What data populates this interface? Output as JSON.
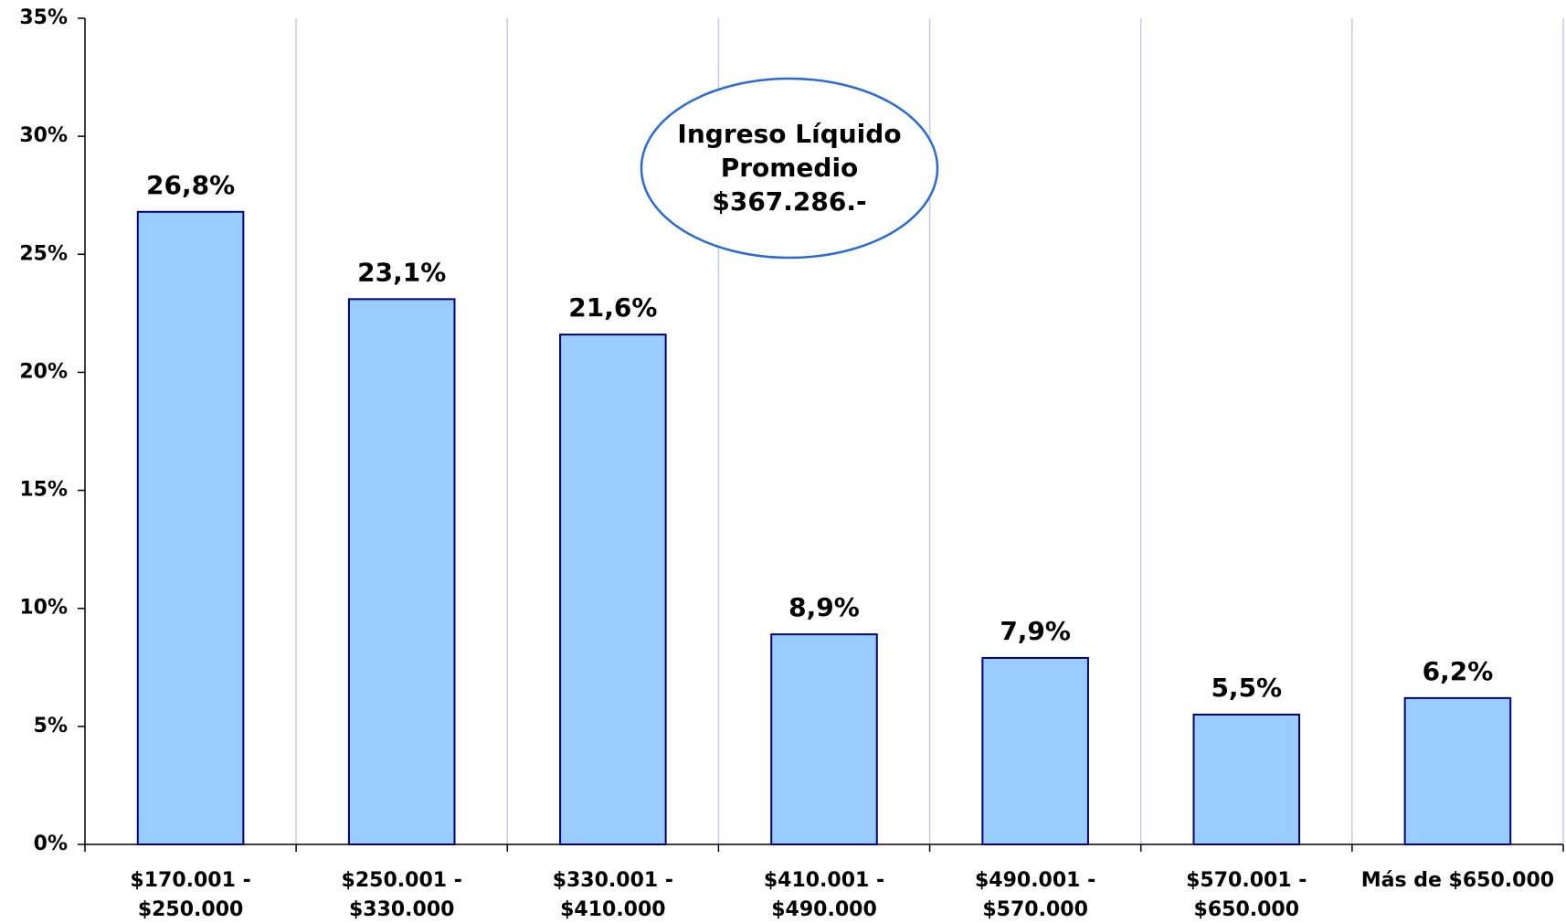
{
  "chart_data": {
    "type": "bar",
    "categories": [
      "$170.001 - $250.000",
      "$250.001 - $330.000",
      "$330.001 - $410.000",
      "$410.001 - $490.000",
      "$490.001 - $570.000",
      "$570.001 - $650.000",
      "Más de $650.000"
    ],
    "values": [
      26.8,
      23.1,
      21.6,
      8.9,
      7.9,
      5.5,
      6.2
    ],
    "value_labels": [
      "26,8%",
      "23,1%",
      "21,6%",
      "8,9%",
      "7,9%",
      "5,5%",
      "6,2%"
    ],
    "color": "#99ccff",
    "ylim": [
      0,
      35
    ],
    "yticks": [
      {
        "value": 0,
        "label": "0%"
      },
      {
        "value": 5,
        "label": "5%"
      },
      {
        "value": 10,
        "label": "10%"
      },
      {
        "value": 15,
        "label": "15%"
      },
      {
        "value": 20,
        "label": "20%"
      },
      {
        "value": 25,
        "label": "25%"
      },
      {
        "value": 30,
        "label": "30%"
      },
      {
        "value": 35,
        "label": "35%"
      }
    ],
    "annotation": [
      "Ingreso Líquido",
      "Promedio",
      "$367.286.-"
    ]
  }
}
